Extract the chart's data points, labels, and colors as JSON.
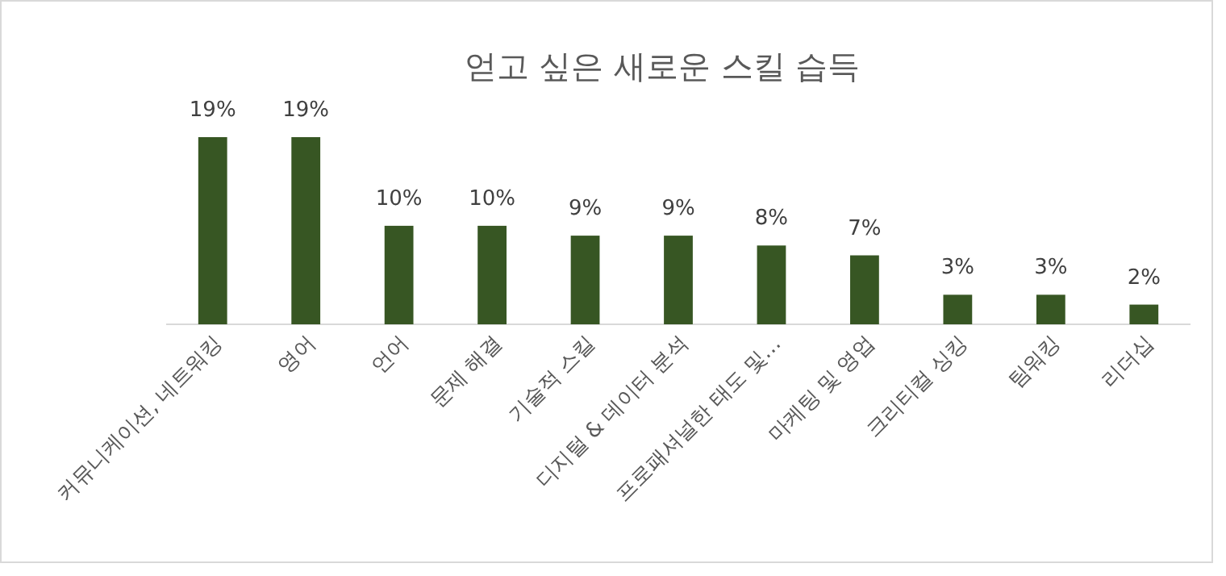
{
  "chart_data": {
    "type": "bar",
    "title": "얻고 싶은 새로운 스킬 습득",
    "categories": [
      "커뮤니케이션, 네트워킹",
      "영어",
      "언어",
      "문제 해결",
      "기술적 스킬",
      "디지털 & 데이터 분석",
      "프로패셔널한 태도 및…",
      "마케팅 및 영업",
      "크리티컬 싱킹",
      "팀워킹",
      "리더십"
    ],
    "values": [
      19,
      19,
      10,
      10,
      9,
      9,
      8,
      7,
      3,
      3,
      2
    ],
    "value_labels": [
      "19%",
      "19%",
      "10%",
      "10%",
      "9%",
      "9%",
      "8%",
      "7%",
      "3%",
      "3%",
      "2%"
    ],
    "color": "#375623"
  }
}
